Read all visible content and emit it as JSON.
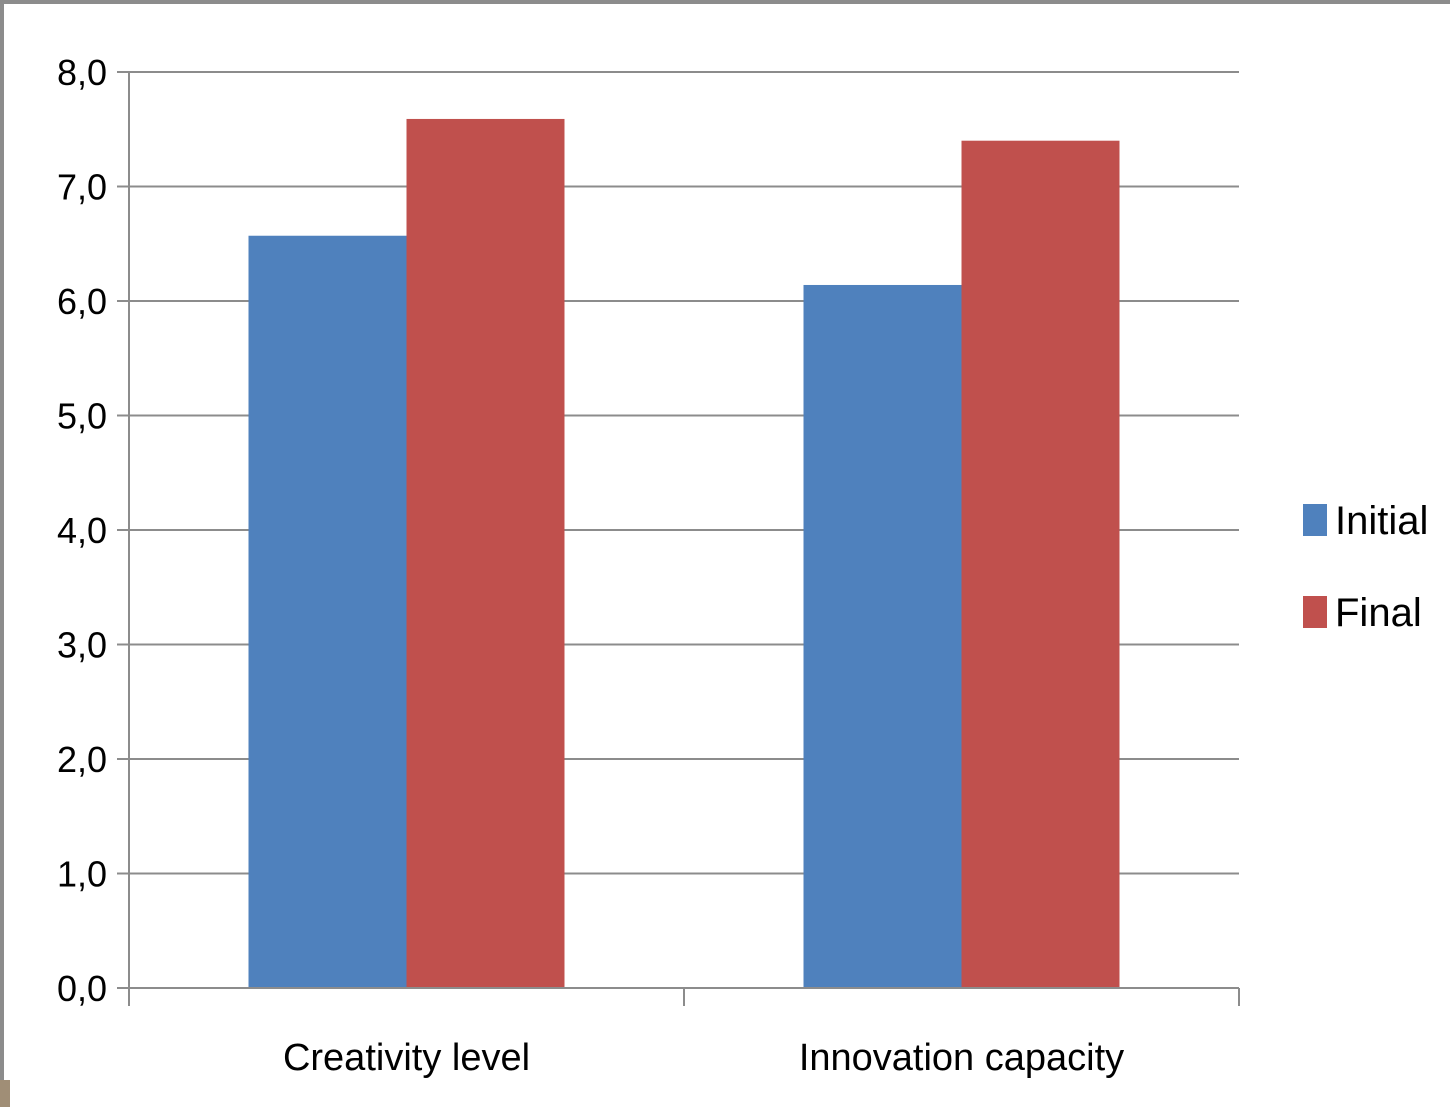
{
  "chart_data": {
    "type": "bar",
    "categories": [
      "Creativity level",
      "Innovation capacity"
    ],
    "series": [
      {
        "name": "Initial",
        "values": [
          6.57,
          6.14
        ],
        "color": "#4f81bd"
      },
      {
        "name": "Final",
        "values": [
          7.59,
          7.4
        ],
        "color": "#c0504d"
      }
    ],
    "ylim": [
      0,
      8
    ],
    "yticks": [
      "0,0",
      "1,0",
      "2,0",
      "3,0",
      "4,0",
      "5,0",
      "6,0",
      "7,0",
      "8,0"
    ],
    "grid": true,
    "legend_position": "right"
  }
}
